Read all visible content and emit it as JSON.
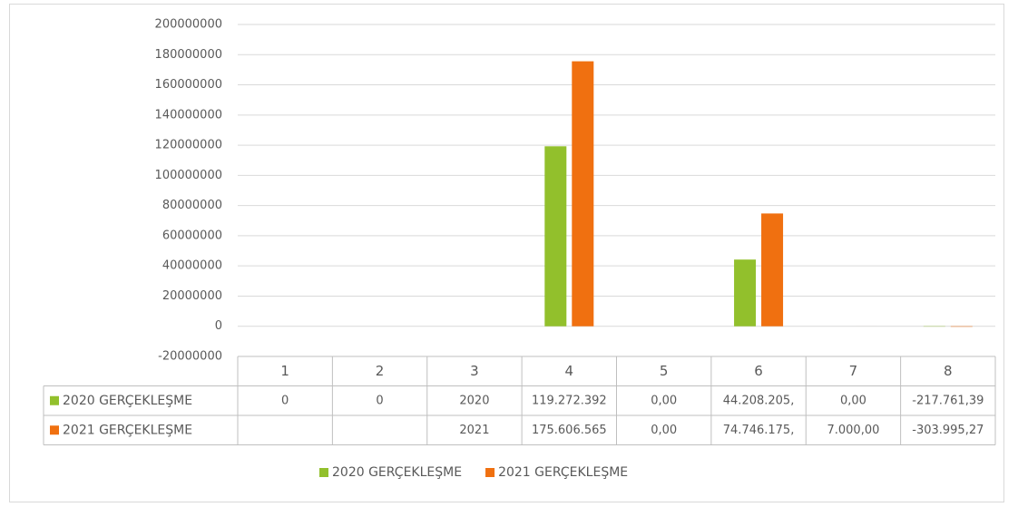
{
  "chart_data": {
    "type": "bar",
    "categories": [
      "1",
      "2",
      "3",
      "4",
      "5",
      "6",
      "7",
      "8"
    ],
    "series": [
      {
        "name": "2020 GERÇEKLEŞME",
        "color": "#92c02c",
        "values": [
          0,
          0,
          2020,
          119272392,
          0,
          44208205,
          0,
          -217761.39
        ],
        "value_labels": [
          "0",
          "0",
          "2020",
          "119.272.392",
          "0,00",
          "44.208.205,",
          "0,00",
          "-217.761,39"
        ]
      },
      {
        "name": "2021 GERÇEKLEŞME",
        "color": "#f07010",
        "values": [
          null,
          null,
          2021,
          175606565,
          0,
          74746175,
          7000,
          -303995.27
        ],
        "value_labels": [
          null,
          null,
          "2021",
          "175.606.565",
          "0,00",
          "74.746.175,",
          "7.000,00",
          "-303.995,27"
        ]
      }
    ],
    "ylim": [
      -20000000,
      200000000
    ],
    "yticks": [
      -20000000,
      0,
      20000000,
      40000000,
      60000000,
      80000000,
      100000000,
      120000000,
      140000000,
      160000000,
      180000000,
      200000000
    ],
    "grid": true,
    "legend": "bottom"
  }
}
